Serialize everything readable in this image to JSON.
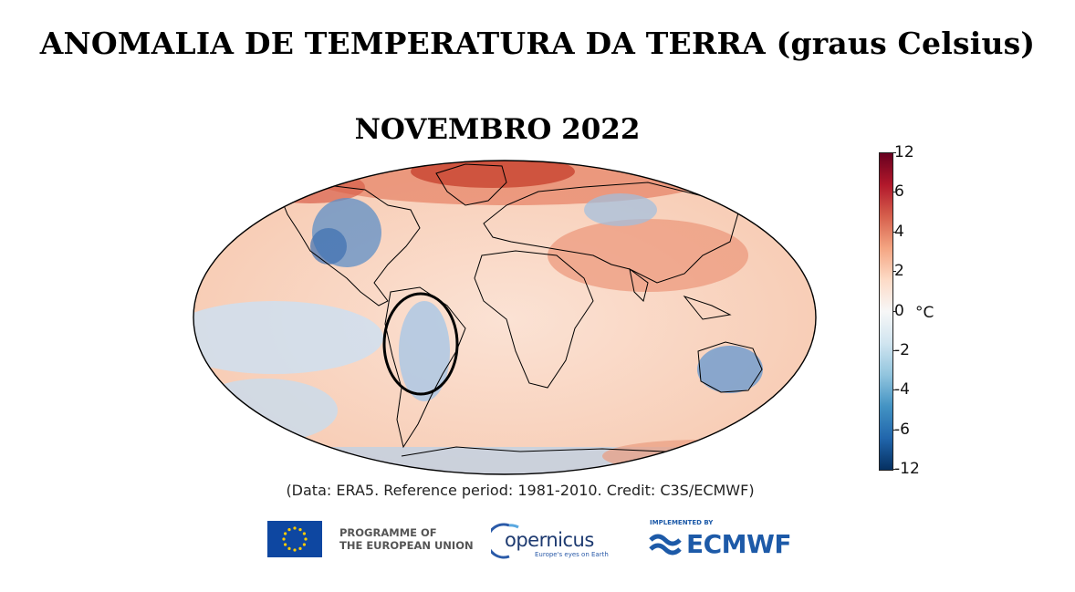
{
  "title": "ANOMALIA DE TEMPERATURA DA TERRA (graus Celsius)",
  "subtitle": "NOVEMBRO 2022",
  "credit": "(Data: ERA5.  Reference period: 1981-2010.  Credit: C3S/ECMWF)",
  "colorbar": {
    "unit": "°C",
    "ticks": [
      "12",
      "6",
      "4",
      "2",
      "0",
      "-2",
      "-4",
      "-6",
      "-12"
    ],
    "colors": [
      "#67001f",
      "#b2182b",
      "#d6604d",
      "#f4a582",
      "#fddbc7",
      "#f7f7f7",
      "#d1e5f0",
      "#92c5de",
      "#4393c3",
      "#2166ac",
      "#053061"
    ]
  },
  "map": {
    "highlight": "Brazil region circled",
    "ocean_color": "#f8d2bd",
    "land_line_color": "#000000"
  },
  "logos": {
    "eu_text_line1": "PROGRAMME OF",
    "eu_text_line2": "THE EUROPEAN UNION",
    "copernicus_name": "opernicus",
    "copernicus_tagline": "Europe's eyes on Earth",
    "ecmwf_implemented": "IMPLEMENTED BY",
    "ecmwf_name": "ECMWF"
  }
}
